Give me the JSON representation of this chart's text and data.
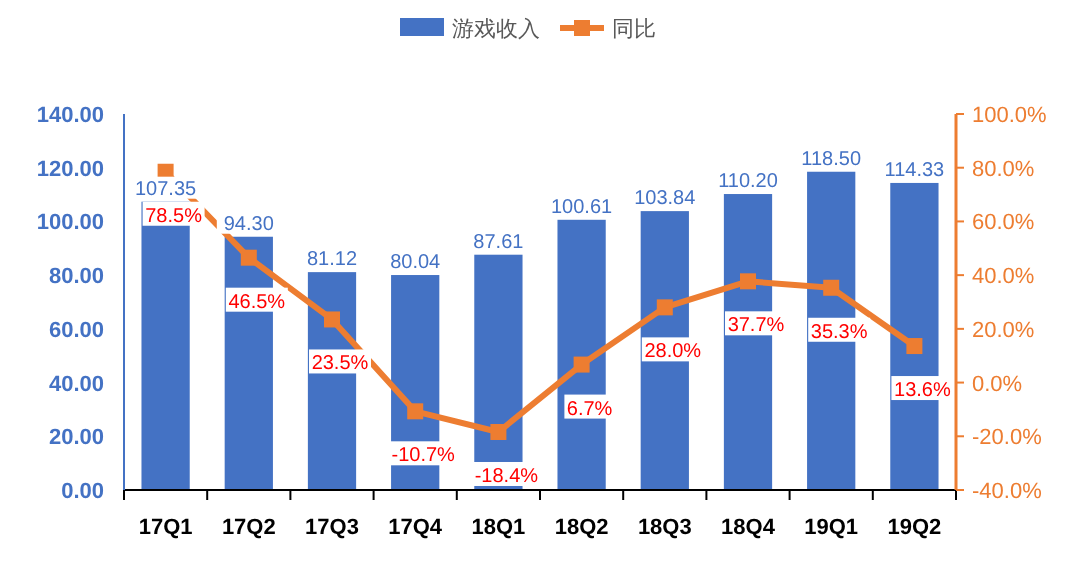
{
  "chart_data": {
    "type": "bar",
    "categories": [
      "17Q1",
      "17Q2",
      "17Q3",
      "17Q4",
      "18Q1",
      "18Q2",
      "18Q3",
      "18Q4",
      "19Q1",
      "19Q2"
    ],
    "series": [
      {
        "name": "游戏收入",
        "color": "#4472c4",
        "values": [
          107.35,
          94.3,
          81.12,
          80.04,
          87.61,
          100.61,
          103.84,
          110.2,
          118.5,
          114.33
        ],
        "value_labels": [
          "107.35",
          "94.30",
          "81.12",
          "80.04",
          "87.61",
          "100.61",
          "103.84",
          "110.20",
          "118.50",
          "114.33"
        ]
      },
      {
        "name": "同比",
        "type": "line",
        "axis": "y2",
        "color": "#ed7d31",
        "marker": "square",
        "values": [
          78.5,
          46.5,
          23.5,
          -10.7,
          -18.4,
          6.7,
          28.0,
          37.7,
          35.3,
          13.6
        ],
        "value_labels": [
          "78.5%",
          "46.5%",
          "23.5%",
          "-10.7%",
          "-18.4%",
          "6.7%",
          "28.0%",
          "37.7%",
          "35.3%",
          "13.6%"
        ]
      }
    ],
    "ylim": [
      0,
      140
    ],
    "yticks": [
      {
        "value": 0,
        "label": "0.00"
      },
      {
        "value": 20,
        "label": "20.00"
      },
      {
        "value": 40,
        "label": "40.00"
      },
      {
        "value": 60,
        "label": "60.00"
      },
      {
        "value": 80,
        "label": "80.00"
      },
      {
        "value": 100,
        "label": "100.00"
      },
      {
        "value": 120,
        "label": "120.00"
      },
      {
        "value": 140,
        "label": "140.00"
      }
    ],
    "y2lim": [
      -40,
      100
    ],
    "y2ticks": [
      {
        "value": -40,
        "label": "-40.0%"
      },
      {
        "value": -20,
        "label": "-20.0%"
      },
      {
        "value": 0,
        "label": "0.0%"
      },
      {
        "value": 20,
        "label": "20.0%"
      },
      {
        "value": 40,
        "label": "40.0%"
      },
      {
        "value": 60,
        "label": "60.0%"
      },
      {
        "value": 80,
        "label": "80.0%"
      },
      {
        "value": 100,
        "label": "100.0%"
      }
    ],
    "legend": "top",
    "grid": false
  }
}
